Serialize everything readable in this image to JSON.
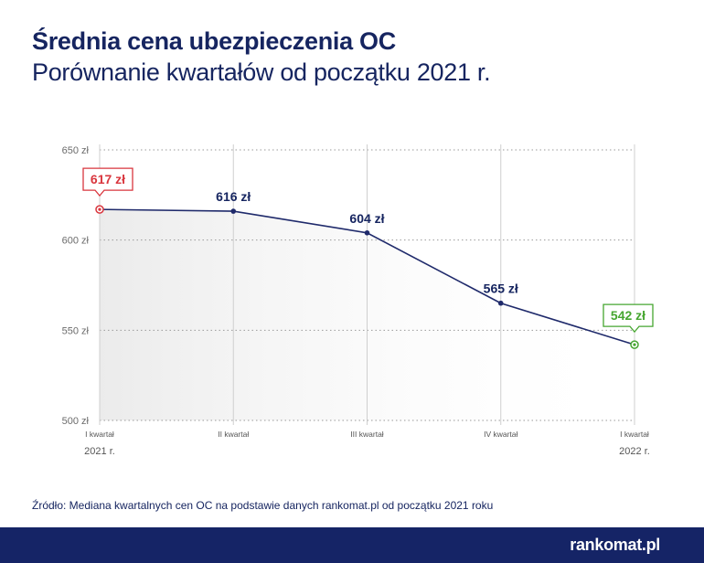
{
  "title": "Średnia cena ubezpieczenia OC",
  "subtitle": "Porównanie kwartałów od początku 2021 r.",
  "source": "Źródło: Mediana kwartalnych cen OC na podstawie danych rankomat.pl od początku 2021 roku",
  "logo": "rankomat.pl",
  "colors": {
    "navy": "#162560",
    "line": "#1f2a6b",
    "start": "#d9363e",
    "end": "#46a630",
    "grid": "#9a9a9a",
    "shade": "#eeeeee",
    "footer": "#152466"
  },
  "chart_data": {
    "type": "line",
    "title": "Średnia cena ubezpieczenia OC",
    "categories": [
      "I kwartał",
      "II kwartał",
      "III kwartał",
      "IV kwartał",
      "I kwartał"
    ],
    "year_labels": [
      "2021 r.",
      "",
      "",
      "",
      "2022 r."
    ],
    "values": [
      617,
      616,
      604,
      565,
      542
    ],
    "labels": [
      "617 zł",
      "616 zł",
      "604 zł",
      "565 zł",
      "542 zł"
    ],
    "unit": "zł",
    "ylim": [
      500,
      650
    ],
    "yticks": [
      500,
      550,
      600,
      650
    ],
    "ytick_labels": [
      "500 zł",
      "550 zł",
      "600 zł",
      "650 zł"
    ],
    "xlabel": "",
    "ylabel": "",
    "grid": true
  }
}
